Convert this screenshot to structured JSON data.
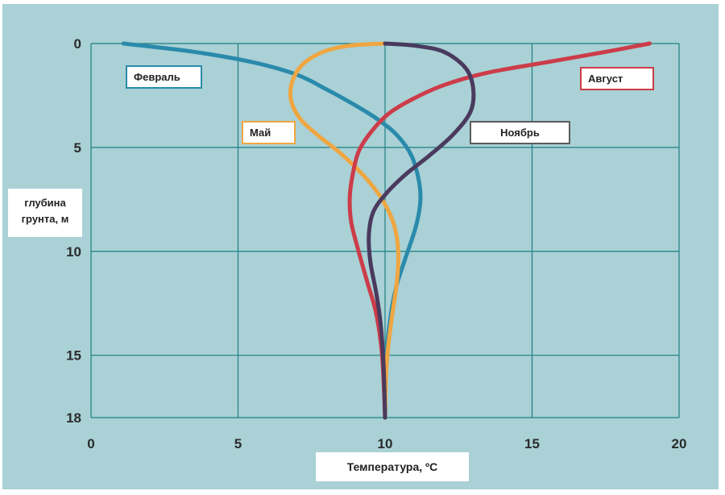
{
  "chart_data": {
    "type": "line",
    "xlabel": "Температура, ºC",
    "ylabel": [
      "глубина",
      "грунта, м"
    ],
    "xlim": [
      0,
      20
    ],
    "ylim": [
      0,
      18
    ],
    "y_inverted": true,
    "grid": true,
    "x_ticks": [
      "0",
      "5",
      "10",
      "15",
      "20"
    ],
    "y_ticks": [
      {
        "value": 0,
        "label": "0"
      },
      {
        "value": 5,
        "label": "5"
      },
      {
        "value": 10,
        "label": "10"
      },
      {
        "value": 15,
        "label": "15"
      },
      {
        "value": 18,
        "label": "18"
      }
    ],
    "series": [
      {
        "name": "Февраль",
        "color": "#2a8aab",
        "points": [
          [
            1.1,
            0
          ],
          [
            3.5,
            0.4
          ],
          [
            5.5,
            0.9
          ],
          [
            7.0,
            1.5
          ],
          [
            8.0,
            2.2
          ],
          [
            8.9,
            2.9
          ],
          [
            9.7,
            3.6
          ],
          [
            10.4,
            4.4
          ],
          [
            10.9,
            5.4
          ],
          [
            11.15,
            6.6
          ],
          [
            11.2,
            7.6
          ],
          [
            11.05,
            8.8
          ],
          [
            10.7,
            10.3
          ],
          [
            10.4,
            11.6
          ],
          [
            10.2,
            13.0
          ],
          [
            10.05,
            15.0
          ],
          [
            10.0,
            18.0
          ]
        ]
      },
      {
        "name": "Май",
        "color": "#f0a640",
        "points": [
          [
            10.0,
            0
          ],
          [
            8.8,
            0.1
          ],
          [
            7.9,
            0.4
          ],
          [
            7.2,
            1.0
          ],
          [
            6.85,
            1.8
          ],
          [
            6.8,
            2.7
          ],
          [
            7.1,
            3.6
          ],
          [
            7.7,
            4.4
          ],
          [
            8.5,
            5.3
          ],
          [
            9.3,
            6.4
          ],
          [
            9.9,
            7.5
          ],
          [
            10.3,
            8.7
          ],
          [
            10.45,
            10.0
          ],
          [
            10.4,
            11.5
          ],
          [
            10.2,
            13.5
          ],
          [
            10.05,
            15.5
          ],
          [
            10.0,
            18.0
          ]
        ]
      },
      {
        "name": "Август",
        "color": "#cc3c49",
        "points": [
          [
            19.0,
            0
          ],
          [
            17.5,
            0.4
          ],
          [
            15.5,
            0.9
          ],
          [
            13.5,
            1.4
          ],
          [
            12.0,
            2.0
          ],
          [
            10.9,
            2.7
          ],
          [
            10.1,
            3.4
          ],
          [
            9.5,
            4.3
          ],
          [
            9.1,
            5.2
          ],
          [
            8.9,
            6.3
          ],
          [
            8.8,
            7.4
          ],
          [
            8.85,
            8.6
          ],
          [
            9.1,
            10.0
          ],
          [
            9.4,
            11.5
          ],
          [
            9.7,
            13.0
          ],
          [
            9.9,
            15.0
          ],
          [
            10.0,
            18.0
          ]
        ]
      },
      {
        "name": "Ноябрь",
        "color": "#4a3a5e",
        "points": [
          [
            10.0,
            0
          ],
          [
            11.0,
            0.1
          ],
          [
            12.0,
            0.4
          ],
          [
            12.75,
            1.2
          ],
          [
            13.0,
            2.2
          ],
          [
            12.9,
            3.3
          ],
          [
            12.3,
            4.4
          ],
          [
            11.5,
            5.4
          ],
          [
            10.7,
            6.3
          ],
          [
            10.05,
            7.2
          ],
          [
            9.6,
            8.1
          ],
          [
            9.45,
            9.2
          ],
          [
            9.5,
            10.5
          ],
          [
            9.7,
            12.0
          ],
          [
            9.85,
            13.5
          ],
          [
            9.95,
            15.5
          ],
          [
            10.0,
            18.0
          ]
        ]
      }
    ]
  }
}
